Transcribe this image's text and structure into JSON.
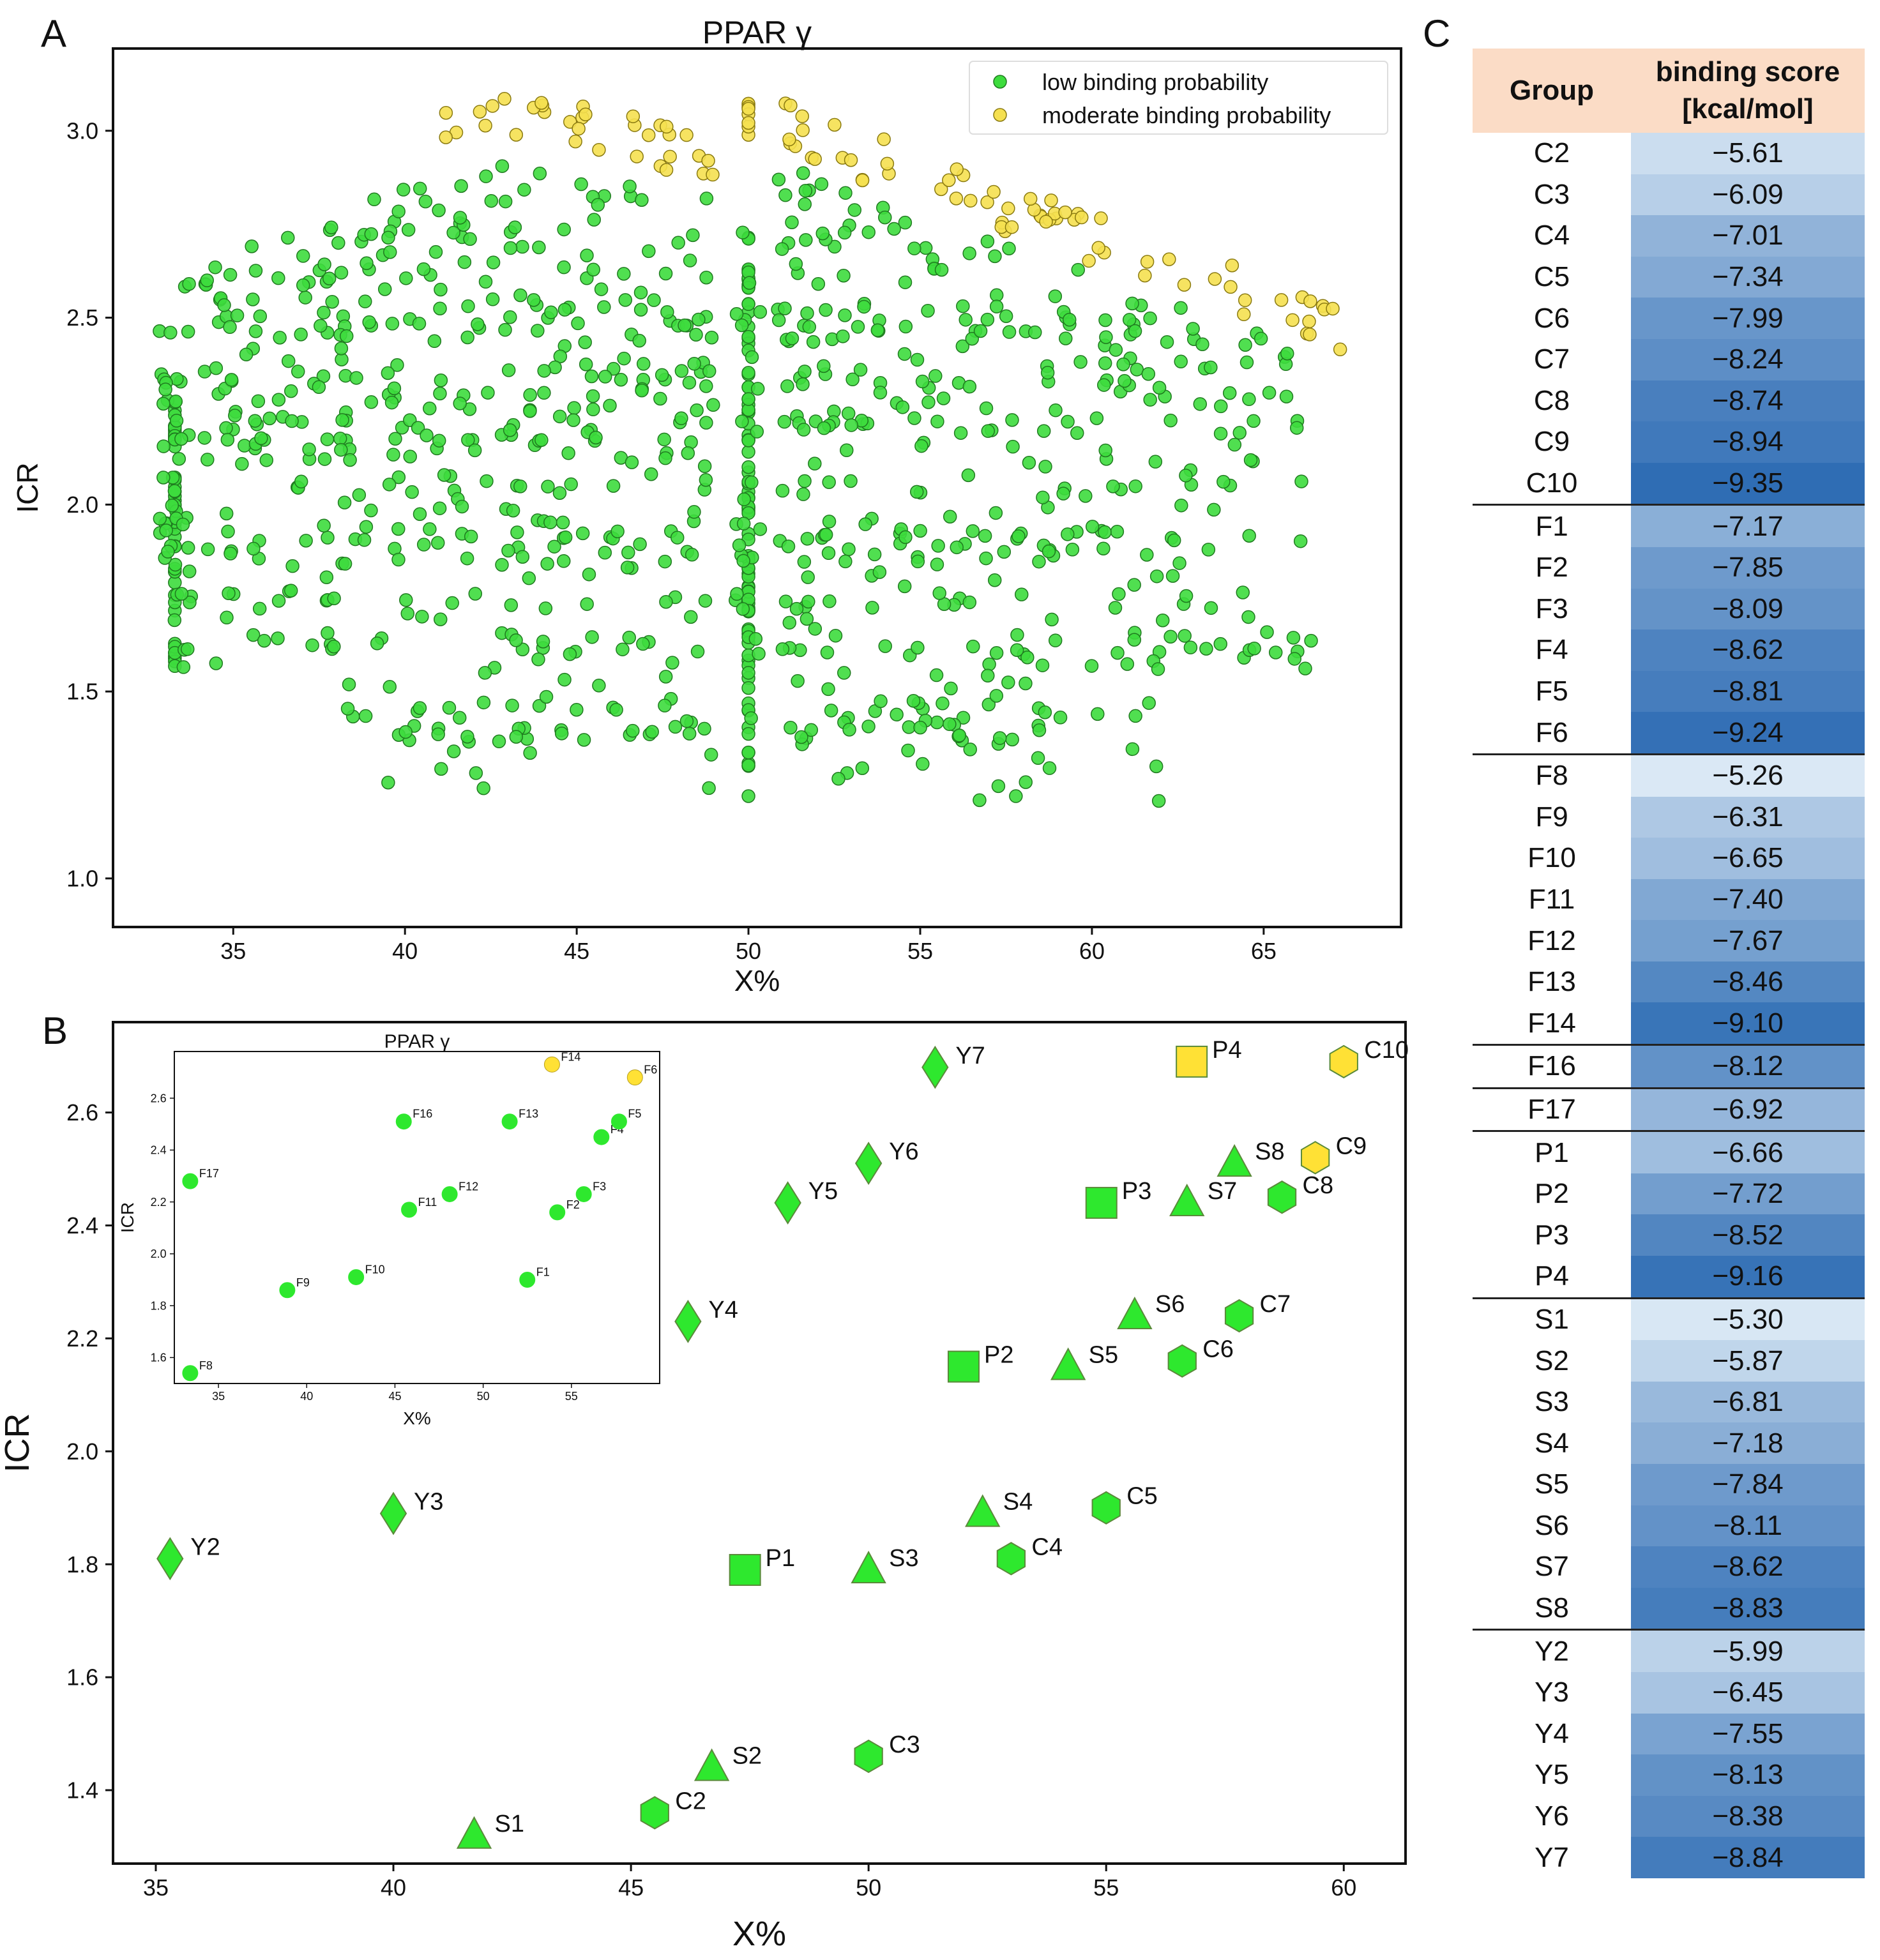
{
  "panels": {
    "a": "A",
    "b": "B",
    "c": "C"
  },
  "chart_data": [
    {
      "panel": "A",
      "type": "scatter",
      "title": "PPAR γ",
      "xlabel": "X%",
      "ylabel": "ICR",
      "xlim": [
        31.5,
        69
      ],
      "ylim": [
        0.87,
        3.22
      ],
      "xticks": [
        35,
        40,
        45,
        50,
        55,
        60,
        65
      ],
      "yticks": [
        1.0,
        1.5,
        2.0,
        2.5,
        3.0
      ],
      "legend_position": "top-right",
      "grid": false,
      "series": [
        {
          "name": "low binding probability",
          "color": "#3ddc3d",
          "generated": true,
          "point_count": 1100
        },
        {
          "name": "moderate binding probability",
          "color": "#f5e050",
          "generated": true,
          "point_count": 110
        }
      ]
    },
    {
      "panel": "B",
      "type": "scatter",
      "xlabel": "X%",
      "ylabel": "ICR",
      "xlim": [
        34.1,
        61.3
      ],
      "ylim": [
        1.27,
        2.76
      ],
      "xticks": [
        35,
        40,
        45,
        50,
        55,
        60
      ],
      "yticks": [
        1.4,
        1.6,
        1.8,
        2.0,
        2.2,
        2.4,
        2.6
      ],
      "grid": false,
      "points": [
        {
          "label": "Y2",
          "x": 35.3,
          "y": 1.81,
          "shape": "diamond",
          "color": "#2ee82e"
        },
        {
          "label": "Y3",
          "x": 40.0,
          "y": 1.89,
          "shape": "diamond",
          "color": "#2ee82e"
        },
        {
          "label": "Y4",
          "x": 46.2,
          "y": 2.23,
          "shape": "diamond",
          "color": "#2ee82e"
        },
        {
          "label": "Y5",
          "x": 48.3,
          "y": 2.44,
          "shape": "diamond",
          "color": "#2ee82e"
        },
        {
          "label": "Y6",
          "x": 50.0,
          "y": 2.51,
          "shape": "diamond",
          "color": "#2ee82e"
        },
        {
          "label": "Y7",
          "x": 51.4,
          "y": 2.68,
          "shape": "diamond",
          "color": "#2ee82e"
        },
        {
          "label": "P1",
          "x": 47.4,
          "y": 1.79,
          "shape": "square",
          "color": "#2ee82e"
        },
        {
          "label": "P2",
          "x": 52.0,
          "y": 2.15,
          "shape": "square",
          "color": "#2ee82e"
        },
        {
          "label": "P3",
          "x": 54.9,
          "y": 2.44,
          "shape": "square",
          "color": "#2ee82e"
        },
        {
          "label": "P4",
          "x": 56.8,
          "y": 2.69,
          "shape": "square",
          "color": "#ffe135"
        },
        {
          "label": "S1",
          "x": 41.7,
          "y": 1.32,
          "shape": "triangle",
          "color": "#2ee82e"
        },
        {
          "label": "S2",
          "x": 46.7,
          "y": 1.44,
          "shape": "triangle",
          "color": "#2ee82e"
        },
        {
          "label": "S3",
          "x": 50.0,
          "y": 1.79,
          "shape": "triangle",
          "color": "#2ee82e"
        },
        {
          "label": "S4",
          "x": 52.4,
          "y": 1.89,
          "shape": "triangle",
          "color": "#2ee82e"
        },
        {
          "label": "S5",
          "x": 54.2,
          "y": 2.15,
          "shape": "triangle",
          "color": "#2ee82e"
        },
        {
          "label": "S6",
          "x": 55.6,
          "y": 2.24,
          "shape": "triangle",
          "color": "#2ee82e"
        },
        {
          "label": "S7",
          "x": 56.7,
          "y": 2.44,
          "shape": "triangle",
          "color": "#2ee82e"
        },
        {
          "label": "S8",
          "x": 57.7,
          "y": 2.51,
          "shape": "triangle",
          "color": "#2ee82e"
        },
        {
          "label": "C2",
          "x": 45.5,
          "y": 1.36,
          "shape": "hexagon",
          "color": "#2ee82e"
        },
        {
          "label": "C3",
          "x": 50.0,
          "y": 1.46,
          "shape": "hexagon",
          "color": "#2ee82e"
        },
        {
          "label": "C4",
          "x": 53.0,
          "y": 1.81,
          "shape": "hexagon",
          "color": "#2ee82e"
        },
        {
          "label": "C5",
          "x": 55.0,
          "y": 1.9,
          "shape": "hexagon",
          "color": "#2ee82e"
        },
        {
          "label": "C6",
          "x": 56.6,
          "y": 2.16,
          "shape": "hexagon",
          "color": "#2ee82e"
        },
        {
          "label": "C7",
          "x": 57.8,
          "y": 2.24,
          "shape": "hexagon",
          "color": "#2ee82e"
        },
        {
          "label": "C8",
          "x": 58.7,
          "y": 2.45,
          "shape": "hexagon",
          "color": "#2ee82e"
        },
        {
          "label": "C9",
          "x": 59.4,
          "y": 2.52,
          "shape": "hexagon",
          "color": "#ffe135"
        },
        {
          "label": "C10",
          "x": 60.0,
          "y": 2.69,
          "shape": "hexagon",
          "color": "#ffe135"
        }
      ]
    },
    {
      "panel": "B-inset",
      "type": "scatter",
      "title": "PPAR γ",
      "xlabel": "X%",
      "ylabel": "ICR",
      "xlim": [
        32.5,
        60
      ],
      "ylim": [
        1.5,
        2.78
      ],
      "xticks": [
        35,
        40,
        45,
        50,
        55
      ],
      "yticks": [
        1.6,
        1.8,
        2.0,
        2.2,
        2.4,
        2.6
      ],
      "points": [
        {
          "label": "F1",
          "x": 52.5,
          "y": 1.9,
          "color": "#2ee82e"
        },
        {
          "label": "F2",
          "x": 54.2,
          "y": 2.16,
          "color": "#2ee82e"
        },
        {
          "label": "F3",
          "x": 55.7,
          "y": 2.23,
          "color": "#2ee82e"
        },
        {
          "label": "F4",
          "x": 56.7,
          "y": 2.45,
          "color": "#2ee82e"
        },
        {
          "label": "F5",
          "x": 57.7,
          "y": 2.51,
          "color": "#2ee82e"
        },
        {
          "label": "F6",
          "x": 58.6,
          "y": 2.68,
          "color": "#ffe135"
        },
        {
          "label": "F8",
          "x": 33.4,
          "y": 1.54,
          "color": "#2ee82e"
        },
        {
          "label": "F9",
          "x": 38.9,
          "y": 1.86,
          "color": "#2ee82e"
        },
        {
          "label": "F10",
          "x": 42.8,
          "y": 1.91,
          "color": "#2ee82e"
        },
        {
          "label": "F11",
          "x": 45.8,
          "y": 2.17,
          "color": "#2ee82e"
        },
        {
          "label": "F12",
          "x": 48.1,
          "y": 2.23,
          "color": "#2ee82e"
        },
        {
          "label": "F13",
          "x": 51.5,
          "y": 2.51,
          "color": "#2ee82e"
        },
        {
          "label": "F14",
          "x": 53.9,
          "y": 2.73,
          "color": "#ffe135"
        },
        {
          "label": "F16",
          "x": 45.5,
          "y": 2.51,
          "color": "#2ee82e"
        },
        {
          "label": "F17",
          "x": 33.4,
          "y": 2.28,
          "color": "#2ee82e"
        }
      ]
    },
    {
      "panel": "C",
      "type": "table",
      "columns": [
        "Group",
        "binding score [kcal/mol]"
      ],
      "color_scale": {
        "light": "#dae8f5",
        "dark": "#2f6db4"
      },
      "rows": [
        {
          "group": "C2",
          "score": "−5.61",
          "value": -5.61,
          "sep": false
        },
        {
          "group": "C3",
          "score": "−6.09",
          "value": -6.09,
          "sep": false
        },
        {
          "group": "C4",
          "score": "−7.01",
          "value": -7.01,
          "sep": false
        },
        {
          "group": "C5",
          "score": "−7.34",
          "value": -7.34,
          "sep": false
        },
        {
          "group": "C6",
          "score": "−7.99",
          "value": -7.99,
          "sep": false
        },
        {
          "group": "C7",
          "score": "−8.24",
          "value": -8.24,
          "sep": false
        },
        {
          "group": "C8",
          "score": "−8.74",
          "value": -8.74,
          "sep": false
        },
        {
          "group": "C9",
          "score": "−8.94",
          "value": -8.94,
          "sep": false
        },
        {
          "group": "C10",
          "score": "−9.35",
          "value": -9.35,
          "sep": false
        },
        {
          "group": "F1",
          "score": "−7.17",
          "value": -7.17,
          "sep": true
        },
        {
          "group": "F2",
          "score": "−7.85",
          "value": -7.85,
          "sep": false
        },
        {
          "group": "F3",
          "score": "−8.09",
          "value": -8.09,
          "sep": false
        },
        {
          "group": "F4",
          "score": "−8.62",
          "value": -8.62,
          "sep": false
        },
        {
          "group": "F5",
          "score": "−8.81",
          "value": -8.81,
          "sep": false
        },
        {
          "group": "F6",
          "score": "−9.24",
          "value": -9.24,
          "sep": false
        },
        {
          "group": "F8",
          "score": "−5.26",
          "value": -5.26,
          "sep": true
        },
        {
          "group": "F9",
          "score": "−6.31",
          "value": -6.31,
          "sep": false
        },
        {
          "group": "F10",
          "score": "−6.65",
          "value": -6.65,
          "sep": false
        },
        {
          "group": "F11",
          "score": "−7.40",
          "value": -7.4,
          "sep": false
        },
        {
          "group": "F12",
          "score": "−7.67",
          "value": -7.67,
          "sep": false
        },
        {
          "group": "F13",
          "score": "−8.46",
          "value": -8.46,
          "sep": false
        },
        {
          "group": "F14",
          "score": "−9.10",
          "value": -9.1,
          "sep": false
        },
        {
          "group": "F16",
          "score": "−8.12",
          "value": -8.12,
          "sep": true
        },
        {
          "group": "F17",
          "score": "−6.92",
          "value": -6.92,
          "sep": true
        },
        {
          "group": "P1",
          "score": "−6.66",
          "value": -6.66,
          "sep": true
        },
        {
          "group": "P2",
          "score": "−7.72",
          "value": -7.72,
          "sep": false
        },
        {
          "group": "P3",
          "score": "−8.52",
          "value": -8.52,
          "sep": false
        },
        {
          "group": "P4",
          "score": "−9.16",
          "value": -9.16,
          "sep": false
        },
        {
          "group": "S1",
          "score": "−5.30",
          "value": -5.3,
          "sep": true
        },
        {
          "group": "S2",
          "score": "−5.87",
          "value": -5.87,
          "sep": false
        },
        {
          "group": "S3",
          "score": "−6.81",
          "value": -6.81,
          "sep": false
        },
        {
          "group": "S4",
          "score": "−7.18",
          "value": -7.18,
          "sep": false
        },
        {
          "group": "S5",
          "score": "−7.84",
          "value": -7.84,
          "sep": false
        },
        {
          "group": "S6",
          "score": "−8.11",
          "value": -8.11,
          "sep": false
        },
        {
          "group": "S7",
          "score": "−8.62",
          "value": -8.62,
          "sep": false
        },
        {
          "group": "S8",
          "score": "−8.83",
          "value": -8.83,
          "sep": false
        },
        {
          "group": "Y2",
          "score": "−5.99",
          "value": -5.99,
          "sep": true
        },
        {
          "group": "Y3",
          "score": "−6.45",
          "value": -6.45,
          "sep": false
        },
        {
          "group": "Y4",
          "score": "−7.55",
          "value": -7.55,
          "sep": false
        },
        {
          "group": "Y5",
          "score": "−8.13",
          "value": -8.13,
          "sep": false
        },
        {
          "group": "Y6",
          "score": "−8.38",
          "value": -8.38,
          "sep": false
        },
        {
          "group": "Y7",
          "score": "−8.84",
          "value": -8.84,
          "sep": false
        }
      ]
    }
  ],
  "table_header": {
    "group": "Group",
    "score_line1": "binding score",
    "score_line2": "[kcal/mol]"
  }
}
